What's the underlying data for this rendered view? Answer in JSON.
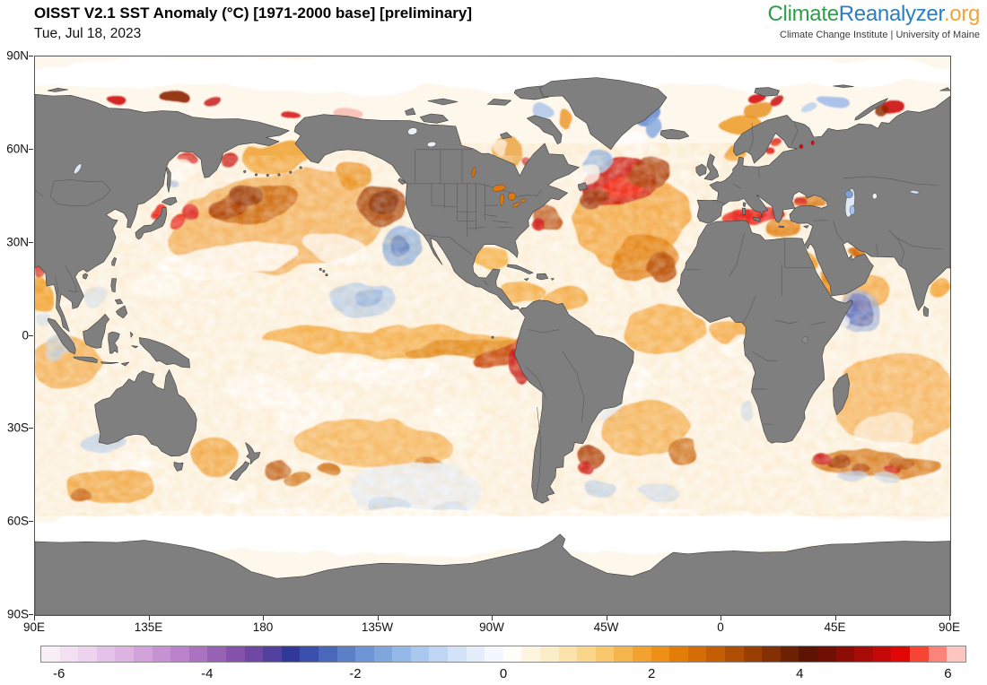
{
  "header": {
    "title": "OISST V2.1 SST Anomaly (°C) [1971-2000 base] [preliminary]",
    "date": "Tue, Jul 18, 2023"
  },
  "logo": {
    "brand": [
      {
        "text": "Climate",
        "color": "#2f9e49"
      },
      {
        "text": "Reanalyzer",
        "color": "#2b7ec1"
      },
      {
        "text": ".org",
        "color": "#f0a43c"
      }
    ],
    "subtitle": "Climate Change Institute | University of Maine"
  },
  "map": {
    "land_color": "#7f7f7f",
    "coast_color": "#3d3d3d",
    "border_color": "#565656",
    "ocean_color": "#fdf7ec",
    "frame_color": "#555555",
    "lat_ticks": [
      {
        "label": "90N",
        "lat": 90
      },
      {
        "label": "60N",
        "lat": 60
      },
      {
        "label": "30N",
        "lat": 30
      },
      {
        "label": "0",
        "lat": 0
      },
      {
        "label": "30S",
        "lat": -30
      },
      {
        "label": "60S",
        "lat": -60
      },
      {
        "label": "90S",
        "lat": -90
      }
    ],
    "lon_ticks": [
      {
        "label": "90E",
        "lon": 90
      },
      {
        "label": "135E",
        "lon": 135
      },
      {
        "label": "180",
        "lon": 180
      },
      {
        "label": "135W",
        "lon": 225
      },
      {
        "label": "90W",
        "lon": 270
      },
      {
        "label": "45W",
        "lon": 315
      },
      {
        "label": "0",
        "lon": 360
      },
      {
        "label": "45E",
        "lon": 405
      },
      {
        "label": "90E",
        "lon": 450
      }
    ]
  },
  "colorbar": {
    "min": -6.25,
    "max": 6.25,
    "tick_values": [
      -6,
      -4,
      -2,
      0,
      2,
      4,
      6
    ],
    "tick_labels": [
      "-6",
      "-4",
      "-2",
      "0",
      "2",
      "4",
      "6"
    ],
    "palette": [
      "#f7eef6",
      "#f3e1f3",
      "#edd3ee",
      "#e5c3e8",
      "#dcb3e1",
      "#d2a3da",
      "#c792d2",
      "#b982ca",
      "#aa73c0",
      "#9862b4",
      "#8553a9",
      "#6f48a3",
      "#53419f",
      "#323898",
      "#3b50ac",
      "#4a68ba",
      "#5b80c8",
      "#6d94d4",
      "#80a6de",
      "#94b8e7",
      "#aac8ee",
      "#bed6f3",
      "#d2e2f8",
      "#e4eefb",
      "#f2f8fd",
      "#fffefb",
      "#fdf5e0",
      "#fcedc9",
      "#fbe3ab",
      "#fad68b",
      "#f8c76b",
      "#f6b54c",
      "#f3a22f",
      "#ee8f16",
      "#e47c08",
      "#d56c05",
      "#c45d04",
      "#b04e04",
      "#9a3f04",
      "#843004",
      "#6d2104",
      "#5e1403",
      "#701004",
      "#8c0d06",
      "#a80b08",
      "#c50909",
      "#e20707",
      "#f64435",
      "#fc837a",
      "#fdc5c0"
    ]
  },
  "chart_data": {
    "type": "heatmap",
    "title": "OISST V2.1 SST Anomaly (°C)",
    "variable": "sea surface temperature anomaly",
    "units": "°C",
    "base_period": "1971-2000",
    "status": "preliminary",
    "date": "Tue, Jul 18, 2023",
    "lon_range": [
      90,
      450
    ],
    "lat_range": [
      -90,
      90
    ],
    "value_range": [
      -6.25,
      6.25
    ],
    "anomaly_blobs": [
      [
        185,
        36,
        42,
        16,
        -8,
        "#f3b261",
        0.95
      ],
      [
        176,
        42,
        18,
        6,
        -10,
        "#c85f06",
        0.9
      ],
      [
        166,
        41,
        9,
        4,
        -15,
        "#a93805",
        0.9
      ],
      [
        173,
        45,
        7,
        3.5,
        0,
        "#8f2b04",
        0.85
      ],
      [
        150.5,
        38.5,
        3.5,
        2.5,
        0,
        "#d60b0b",
        0.9
      ],
      [
        145,
        37,
        3,
        2,
        -20,
        "#e81510",
        0.9
      ],
      [
        137.5,
        40,
        2.5,
        2,
        0,
        "#e8180e",
        0.9
      ],
      [
        167,
        57.5,
        3.5,
        2,
        0,
        "#c40909",
        0.85
      ],
      [
        150,
        58,
        4,
        1.5,
        0,
        "#d20b0b",
        0.8
      ],
      [
        147.5,
        54,
        5.5,
        3.5,
        0,
        "#ffffff",
        0.85
      ],
      [
        144.5,
        49.5,
        2.5,
        1.5,
        0,
        "#a6c3ec",
        0.8
      ],
      [
        185,
        57,
        13,
        4.5,
        0,
        "#ec920f",
        0.75
      ],
      [
        216,
        51,
        8,
        4,
        0,
        "#e8880f",
        0.8
      ],
      [
        226.5,
        42.5,
        9,
        5.5,
        15,
        "#a33b05",
        0.9
      ],
      [
        227,
        43.5,
        5,
        3,
        10,
        "#7f2604",
        0.85
      ],
      [
        165,
        24,
        28,
        5.5,
        -5,
        "#ffffff",
        0.9
      ],
      [
        207,
        28,
        12,
        5,
        0,
        "#ffffff",
        0.8
      ],
      [
        138,
        15,
        10,
        4,
        0,
        "#ffffff",
        0.7
      ],
      [
        112,
        12,
        4,
        3,
        0,
        "#cfe0f4",
        0.7
      ],
      [
        234,
        29,
        8,
        6.5,
        20,
        "#8fb3e2",
        0.9
      ],
      [
        233.5,
        29.5,
        4,
        3,
        20,
        "#5d83c9",
        0.9
      ],
      [
        220,
        13,
        13,
        5.5,
        0,
        "#b9d2ef",
        0.9
      ],
      [
        222,
        14,
        6,
        3,
        0,
        "#8fb4e4",
        0.85
      ],
      [
        230,
        -2,
        50,
        5,
        0,
        "#f4ad49",
        0.95
      ],
      [
        258,
        -4,
        24,
        3.5,
        -4,
        "#e08514",
        0.9
      ],
      [
        272,
        -6,
        10,
        3,
        -25,
        "#c23c06",
        0.9
      ],
      [
        279,
        -9,
        4.5,
        6,
        -15,
        "#c50909",
        0.95
      ],
      [
        280.5,
        -4,
        2.5,
        4,
        -20,
        "#e10c0c",
        0.9
      ],
      [
        248,
        7,
        16,
        3.5,
        0,
        "#fdf6ea",
        0.85
      ],
      [
        225,
        -12,
        25,
        4,
        0,
        "#ffffff",
        0.8
      ],
      [
        178,
        -18,
        12,
        6,
        0,
        "#ffffff",
        0.8
      ],
      [
        197,
        -25,
        14,
        7,
        0,
        "#ffffff",
        0.8
      ],
      [
        255,
        -28,
        10,
        6,
        0,
        "#ffffff",
        0.7
      ],
      [
        225,
        -35,
        32,
        8,
        3,
        "#f4b051",
        0.85
      ],
      [
        205,
        -44,
        5,
        2.5,
        0,
        "#c96204",
        0.85
      ],
      [
        245,
        -42,
        6,
        3,
        0,
        "#d06c06",
        0.75
      ],
      [
        160,
        -38,
        9,
        6,
        0,
        "#f0a035",
        0.85
      ],
      [
        185,
        -43,
        5,
        3,
        0,
        "#b84a04",
        0.8
      ],
      [
        192,
        -47,
        5,
        2.5,
        0,
        "#cc6406",
        0.8
      ],
      [
        170,
        -51,
        8,
        3,
        0,
        "#ffffff",
        0.8
      ],
      [
        240,
        -50,
        26,
        9,
        0,
        "#eaf1fa",
        0.95
      ],
      [
        230,
        -55,
        8,
        3,
        0,
        "#c3d8f2",
        0.8
      ],
      [
        252,
        -56,
        7,
        2.5,
        0,
        "#cfe0f5",
        0.8
      ],
      [
        103,
        -8,
        14,
        9,
        0,
        "#f3a94a",
        0.85
      ],
      [
        97,
        -7,
        4,
        2.5,
        0,
        "#b9d0ee",
        0.7
      ],
      [
        100,
        -2.5,
        6,
        4,
        0,
        "#bcd3ee",
        0.7
      ],
      [
        93,
        6,
        3,
        2.5,
        0,
        "#cfe0f4",
        0.7
      ],
      [
        92,
        14,
        5,
        5,
        0,
        "#f0940f",
        0.85
      ],
      [
        91.5,
        20.5,
        2.5,
        1.8,
        0,
        "#d10b0b",
        0.9
      ],
      [
        447,
        15,
        4,
        4,
        0,
        "#f0940f",
        0.8
      ],
      [
        428,
        -20,
        26,
        14,
        0,
        "#f6b45c",
        0.9
      ],
      [
        425,
        -31,
        12,
        5,
        0,
        "#ffffff",
        0.6
      ],
      [
        420,
        -42,
        26,
        5,
        3,
        "#d2700a",
        0.85
      ],
      [
        405,
        -41,
        5,
        2.5,
        0,
        "#9c3004",
        0.85
      ],
      [
        415,
        -43.5,
        4,
        2,
        0,
        "#a83804",
        0.85
      ],
      [
        432,
        -41,
        5,
        2.5,
        0,
        "#b04004",
        0.8
      ],
      [
        398,
        -40,
        3.5,
        2,
        0,
        "#c50808",
        0.9
      ],
      [
        428,
        -43.5,
        3,
        1.8,
        0,
        "#cc0909",
        0.85
      ],
      [
        412,
        -46.5,
        6,
        2,
        0,
        "#b7cff0",
        0.75
      ],
      [
        425,
        -47,
        5,
        1.8,
        0,
        "#c3d8f2",
        0.7
      ],
      [
        118,
        -33.5,
        8,
        4,
        0,
        "#bcd3f0",
        0.85
      ],
      [
        128,
        -41,
        8,
        4,
        0,
        "#ffffff",
        0.75
      ],
      [
        120,
        -49,
        18,
        5,
        0,
        "#ef9c2c",
        0.8
      ],
      [
        108,
        -51,
        4,
        2,
        0,
        "#c05804",
        0.8
      ],
      [
        418,
        14,
        10,
        6,
        0,
        "#f2a237",
        0.85
      ],
      [
        414.5,
        8.5,
        8,
        7,
        0,
        "#93abdf",
        0.7
      ],
      [
        414.5,
        8.5,
        5.5,
        5.5,
        0,
        "#5a6cbe",
        0.9
      ],
      [
        407,
        5,
        4,
        4,
        0,
        "#ffffff",
        0.7
      ],
      [
        325,
        37,
        23,
        14,
        -10,
        "#f3a33b",
        0.9
      ],
      [
        330,
        25,
        13,
        8,
        0,
        "#e0790a",
        0.85
      ],
      [
        337,
        21,
        5,
        6,
        0,
        "#b54604",
        0.9
      ],
      [
        320,
        49,
        14,
        8.5,
        -15,
        "#ca1208",
        0.92
      ],
      [
        322,
        47.5,
        7,
        4.5,
        -15,
        "#ef2012",
        0.95
      ],
      [
        312,
        44,
        6,
        4,
        0,
        "#8f2604",
        0.8
      ],
      [
        331,
        53,
        8,
        5,
        0,
        "#a63304",
        0.85
      ],
      [
        292,
        38,
        7,
        4,
        30,
        "#b04004",
        0.8
      ],
      [
        288.5,
        36,
        3,
        2,
        30,
        "#d00a0a",
        0.9
      ],
      [
        268,
        25.5,
        7,
        4,
        0,
        "#f6ad3e",
        0.9
      ],
      [
        282,
        15,
        9,
        4,
        0,
        "#f3a435",
        0.85
      ],
      [
        298,
        12,
        8,
        4,
        0,
        "#f2a134",
        0.85
      ],
      [
        338,
        2,
        16,
        8,
        0,
        "#f4a83e",
        0.85
      ],
      [
        363,
        2,
        8,
        4,
        0,
        "#f3a032",
        0.85
      ],
      [
        366,
        -3.5,
        5,
        3,
        0,
        "#ffffff",
        0.8
      ],
      [
        320,
        -15,
        12,
        7,
        0,
        "#ffffff",
        0.75
      ],
      [
        316,
        -25,
        6,
        4,
        0,
        "#dfe9f7",
        0.7
      ],
      [
        372,
        -25,
        2.5,
        4,
        0,
        "#cfe0f4",
        0.8
      ],
      [
        330,
        -30,
        18,
        9,
        0,
        "#f3ab4a",
        0.85
      ],
      [
        308,
        -40,
        6,
        3.5,
        0,
        "#a83404",
        0.9
      ],
      [
        306,
        -43.5,
        4,
        2.2,
        0,
        "#c90808",
        0.9
      ],
      [
        345,
        -38,
        6,
        3,
        0,
        "#c45c04",
        0.8
      ],
      [
        312,
        -50,
        7,
        2.5,
        0,
        "#bdd4f1",
        0.8
      ],
      [
        335,
        -52,
        8,
        2.5,
        0,
        "#cadcf3",
        0.7
      ],
      [
        312,
        57,
        5.5,
        3.5,
        0,
        "#9bbce8",
        0.9
      ],
      [
        308,
        53.5,
        6,
        3.5,
        0,
        "#ffffff",
        0.8
      ],
      [
        330,
        71,
        5,
        4.5,
        0,
        "#6d8fd2",
        0.9
      ],
      [
        334,
        66.5,
        3.5,
        3,
        0,
        "#8aabde",
        0.85
      ],
      [
        325,
        62,
        6,
        4,
        0,
        "#ffffff",
        0.8
      ],
      [
        297,
        70,
        3,
        4,
        0,
        "#ec9222",
        0.8
      ],
      [
        290,
        66,
        2,
        1.5,
        0,
        "#d00b0b",
        0.85
      ],
      [
        288,
        72,
        3.5,
        2.5,
        0,
        "#a9c4ea",
        0.8
      ],
      [
        275,
        58.5,
        6.5,
        4.5,
        0,
        "#eb9e36",
        0.8
      ],
      [
        272,
        60,
        3,
        2,
        0,
        "#ffffff",
        0.7
      ],
      [
        283,
        56.5,
        2,
        1.5,
        0,
        "#cc0a0a",
        0.8
      ],
      [
        367,
        69,
        8,
        3.5,
        0,
        "#ef9a25",
        0.85
      ],
      [
        374,
        73.5,
        6,
        2.5,
        0,
        "#e88c16",
        0.8
      ],
      [
        372,
        77.8,
        3.5,
        1.8,
        0,
        "#d60c0c",
        0.9
      ],
      [
        381,
        75.8,
        3,
        1.5,
        0,
        "#c90909",
        0.85
      ],
      [
        364,
        57,
        4,
        3,
        0,
        "#f2a032",
        0.85
      ],
      [
        379,
        58.8,
        2.5,
        1.5,
        0,
        "#d40b0b",
        0.85
      ],
      [
        381,
        62.5,
        2,
        1.5,
        0,
        "#e11e0e",
        0.8
      ],
      [
        369.5,
        64.5,
        1.5,
        2.5,
        0,
        "#aac6ec",
        0.8
      ],
      [
        364,
        37.8,
        5.5,
        2.2,
        0,
        "#ef1410",
        0.92
      ],
      [
        372,
        38.8,
        11,
        3.2,
        -3,
        "#e60909",
        0.95
      ],
      [
        383,
        34.5,
        7,
        2.5,
        0,
        "#e07b0c",
        0.9
      ],
      [
        394,
        43,
        6,
        2.2,
        0,
        "#d8730a",
        0.9
      ],
      [
        390.5,
        43.5,
        2,
        1.5,
        0,
        "#cf0909",
        0.85
      ],
      [
        395,
        25,
        1.6,
        3.5,
        -20,
        "#ef9416",
        0.95
      ],
      [
        400,
        17,
        1.8,
        3.5,
        -20,
        "#e8870f",
        0.95
      ],
      [
        412.5,
        27,
        3,
        1.7,
        -15,
        "#d06405",
        0.95
      ],
      [
        122,
        76.5,
        4,
        1.5,
        0,
        "#d00c0c",
        0.9
      ],
      [
        145,
        76.5,
        7,
        1.3,
        2,
        "#8c2505",
        0.9
      ],
      [
        160,
        74.5,
        3,
        1,
        0,
        "#c30a0a",
        0.8
      ],
      [
        428,
        73.5,
        5,
        2.5,
        0,
        "#cb0a0a",
        0.9
      ],
      [
        423.5,
        72,
        3,
        1.5,
        0,
        "#8e2605",
        0.8
      ],
      [
        405,
        74.5,
        6,
        2,
        0,
        "#9db9e7",
        0.85
      ],
      [
        397,
        71.5,
        3,
        1.5,
        0,
        "#b6cdef",
        0.8
      ],
      [
        192,
        71,
        4,
        1.5,
        0,
        "#d60c0c",
        0.85
      ],
      [
        213,
        72,
        6,
        1.8,
        0,
        "#f8b7ad",
        0.8
      ],
      [
        270,
        84.5,
        200,
        6,
        0,
        "#ffffff",
        1
      ],
      [
        270,
        -63,
        200,
        7,
        0,
        "#ffffff",
        1
      ]
    ]
  }
}
